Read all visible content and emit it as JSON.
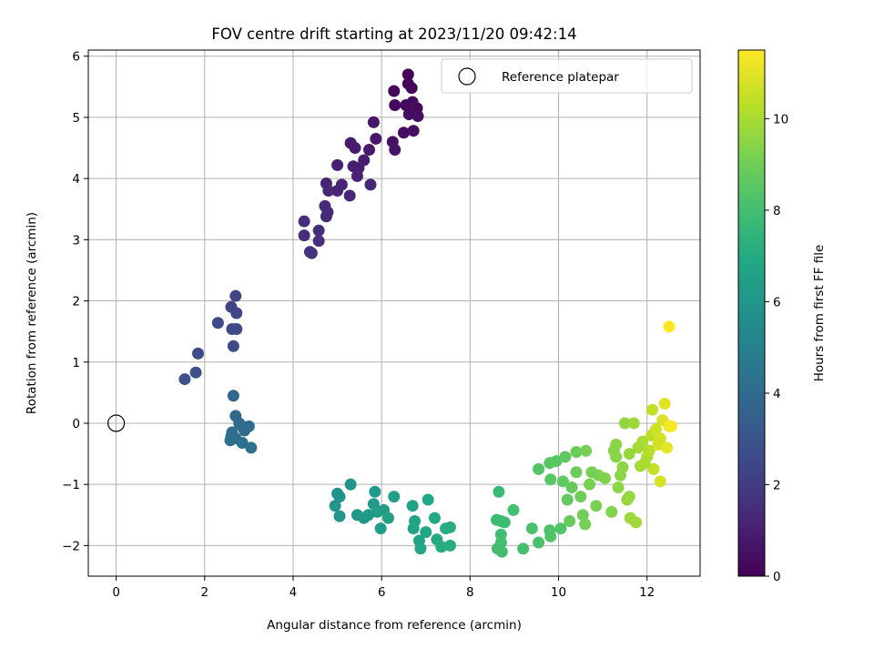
{
  "chart_data": {
    "type": "scatter",
    "title": "FOV centre drift starting at 2023/11/20 09:42:14",
    "xlabel": "Angular distance from reference (arcmin)",
    "ylabel": "Rotation from reference (arcmin)",
    "xlim": [
      -0.63,
      13.2
    ],
    "ylim": [
      -2.5,
      6.1
    ],
    "xticks": [
      "0",
      "2",
      "4",
      "6",
      "8",
      "10",
      "12"
    ],
    "xtick_values": [
      0,
      2,
      4,
      6,
      8,
      10,
      12
    ],
    "yticks": [
      "−2",
      "−1",
      "0",
      "1",
      "2",
      "3",
      "4",
      "5",
      "6"
    ],
    "ytick_values": [
      -2,
      -1,
      0,
      1,
      2,
      3,
      4,
      5,
      6
    ],
    "grid": true,
    "legend": {
      "placement": "top-right",
      "label": "Reference platepar"
    },
    "reference_point": {
      "x": 0,
      "y": 0
    },
    "colorbar": {
      "label": "Hours from first FF file",
      "range": [
        0,
        11.5
      ],
      "ticks": [
        "0",
        "2",
        "4",
        "6",
        "8",
        "10"
      ],
      "tick_values": [
        0,
        2,
        4,
        6,
        8,
        10
      ],
      "colormap": "viridis"
    },
    "points": [
      {
        "x": 6.6,
        "y": 5.7,
        "c": 0.1
      },
      {
        "x": 6.6,
        "y": 5.55,
        "c": 0.15
      },
      {
        "x": 6.68,
        "y": 5.48,
        "c": 0.2
      },
      {
        "x": 6.28,
        "y": 5.43,
        "c": 0.25
      },
      {
        "x": 6.3,
        "y": 5.2,
        "c": 0.3
      },
      {
        "x": 6.55,
        "y": 5.2,
        "c": 0.3
      },
      {
        "x": 6.7,
        "y": 5.25,
        "c": 0.35
      },
      {
        "x": 6.8,
        "y": 5.15,
        "c": 0.35
      },
      {
        "x": 6.82,
        "y": 5.02,
        "c": 0.4
      },
      {
        "x": 6.62,
        "y": 5.05,
        "c": 0.4
      },
      {
        "x": 6.72,
        "y": 4.78,
        "c": 0.45
      },
      {
        "x": 6.5,
        "y": 4.75,
        "c": 0.5
      },
      {
        "x": 6.25,
        "y": 4.6,
        "c": 0.55
      },
      {
        "x": 6.3,
        "y": 4.47,
        "c": 0.6
      },
      {
        "x": 5.82,
        "y": 4.92,
        "c": 0.7
      },
      {
        "x": 5.87,
        "y": 4.65,
        "c": 0.75
      },
      {
        "x": 5.72,
        "y": 4.47,
        "c": 0.8
      },
      {
        "x": 5.3,
        "y": 4.58,
        "c": 0.85
      },
      {
        "x": 5.4,
        "y": 4.5,
        "c": 0.9
      },
      {
        "x": 5.6,
        "y": 4.3,
        "c": 0.95
      },
      {
        "x": 5.36,
        "y": 4.2,
        "c": 1.0
      },
      {
        "x": 5.48,
        "y": 4.17,
        "c": 1.0
      },
      {
        "x": 5.0,
        "y": 4.22,
        "c": 1.05
      },
      {
        "x": 5.45,
        "y": 4.04,
        "c": 1.1
      },
      {
        "x": 4.75,
        "y": 3.92,
        "c": 1.15
      },
      {
        "x": 5.1,
        "y": 3.9,
        "c": 1.2
      },
      {
        "x": 5.0,
        "y": 3.8,
        "c": 1.2
      },
      {
        "x": 5.28,
        "y": 3.72,
        "c": 1.25
      },
      {
        "x": 4.8,
        "y": 3.8,
        "c": 1.3
      },
      {
        "x": 5.75,
        "y": 3.9,
        "c": 1.3
      },
      {
        "x": 4.72,
        "y": 3.55,
        "c": 1.35
      },
      {
        "x": 4.78,
        "y": 3.45,
        "c": 1.4
      },
      {
        "x": 4.75,
        "y": 3.38,
        "c": 1.4
      },
      {
        "x": 4.25,
        "y": 3.3,
        "c": 1.45
      },
      {
        "x": 4.58,
        "y": 3.15,
        "c": 1.5
      },
      {
        "x": 4.25,
        "y": 3.07,
        "c": 1.5
      },
      {
        "x": 4.58,
        "y": 2.98,
        "c": 1.55
      },
      {
        "x": 4.38,
        "y": 2.8,
        "c": 1.6
      },
      {
        "x": 4.42,
        "y": 2.78,
        "c": 1.6
      },
      {
        "x": 2.7,
        "y": 2.08,
        "c": 2.3
      },
      {
        "x": 2.6,
        "y": 1.9,
        "c": 2.35
      },
      {
        "x": 2.72,
        "y": 1.8,
        "c": 2.4
      },
      {
        "x": 2.3,
        "y": 1.64,
        "c": 2.45
      },
      {
        "x": 2.62,
        "y": 1.54,
        "c": 2.5
      },
      {
        "x": 2.72,
        "y": 1.54,
        "c": 2.5
      },
      {
        "x": 2.65,
        "y": 1.26,
        "c": 2.6
      },
      {
        "x": 1.85,
        "y": 1.14,
        "c": 2.7
      },
      {
        "x": 1.8,
        "y": 0.83,
        "c": 2.8
      },
      {
        "x": 1.55,
        "y": 0.72,
        "c": 2.9
      },
      {
        "x": 2.65,
        "y": 0.45,
        "c": 3.8
      },
      {
        "x": 2.7,
        "y": 0.12,
        "c": 3.9
      },
      {
        "x": 2.78,
        "y": 0.0,
        "c": 3.95
      },
      {
        "x": 2.85,
        "y": -0.05,
        "c": 4.0
      },
      {
        "x": 3.0,
        "y": -0.05,
        "c": 4.05
      },
      {
        "x": 2.62,
        "y": -0.15,
        "c": 4.1
      },
      {
        "x": 2.9,
        "y": -0.12,
        "c": 4.1
      },
      {
        "x": 2.6,
        "y": -0.22,
        "c": 4.15
      },
      {
        "x": 2.7,
        "y": -0.25,
        "c": 4.2
      },
      {
        "x": 2.85,
        "y": -0.32,
        "c": 4.25
      },
      {
        "x": 3.05,
        "y": -0.4,
        "c": 4.3
      },
      {
        "x": 2.58,
        "y": -0.28,
        "c": 4.2
      },
      {
        "x": 5.0,
        "y": -1.15,
        "c": 5.8
      },
      {
        "x": 5.05,
        "y": -1.2,
        "c": 5.85
      },
      {
        "x": 5.3,
        "y": -1.0,
        "c": 5.9
      },
      {
        "x": 4.95,
        "y": -1.35,
        "c": 5.95
      },
      {
        "x": 5.05,
        "y": -1.52,
        "c": 6.0
      },
      {
        "x": 5.45,
        "y": -1.5,
        "c": 6.05
      },
      {
        "x": 5.6,
        "y": -1.55,
        "c": 6.1
      },
      {
        "x": 5.7,
        "y": -1.5,
        "c": 6.15
      },
      {
        "x": 5.82,
        "y": -1.32,
        "c": 6.2
      },
      {
        "x": 5.85,
        "y": -1.12,
        "c": 6.25
      },
      {
        "x": 5.9,
        "y": -1.45,
        "c": 6.3
      },
      {
        "x": 5.98,
        "y": -1.72,
        "c": 6.35
      },
      {
        "x": 6.05,
        "y": -1.42,
        "c": 6.4
      },
      {
        "x": 6.15,
        "y": -1.55,
        "c": 6.45
      },
      {
        "x": 6.28,
        "y": -1.2,
        "c": 6.5
      },
      {
        "x": 6.7,
        "y": -1.35,
        "c": 6.6
      },
      {
        "x": 6.75,
        "y": -1.6,
        "c": 6.65
      },
      {
        "x": 6.72,
        "y": -1.72,
        "c": 6.7
      },
      {
        "x": 6.85,
        "y": -1.92,
        "c": 6.75
      },
      {
        "x": 6.88,
        "y": -2.05,
        "c": 6.8
      },
      {
        "x": 7.0,
        "y": -1.78,
        "c": 6.85
      },
      {
        "x": 7.05,
        "y": -1.25,
        "c": 6.9
      },
      {
        "x": 7.2,
        "y": -1.55,
        "c": 6.95
      },
      {
        "x": 7.25,
        "y": -1.9,
        "c": 7.0
      },
      {
        "x": 7.35,
        "y": -2.02,
        "c": 7.05
      },
      {
        "x": 7.45,
        "y": -1.72,
        "c": 7.1
      },
      {
        "x": 7.55,
        "y": -1.7,
        "c": 7.15
      },
      {
        "x": 7.55,
        "y": -2.0,
        "c": 7.2
      },
      {
        "x": 8.65,
        "y": -1.12,
        "c": 7.7
      },
      {
        "x": 8.6,
        "y": -1.58,
        "c": 7.75
      },
      {
        "x": 8.7,
        "y": -1.6,
        "c": 7.8
      },
      {
        "x": 8.78,
        "y": -1.62,
        "c": 7.85
      },
      {
        "x": 8.7,
        "y": -1.82,
        "c": 7.9
      },
      {
        "x": 8.62,
        "y": -2.05,
        "c": 7.95
      },
      {
        "x": 8.72,
        "y": -2.1,
        "c": 8.0
      },
      {
        "x": 8.7,
        "y": -1.95,
        "c": 8.0
      },
      {
        "x": 8.98,
        "y": -1.42,
        "c": 8.05
      },
      {
        "x": 9.2,
        "y": -2.05,
        "c": 8.1
      },
      {
        "x": 9.4,
        "y": -1.72,
        "c": 8.15
      },
      {
        "x": 9.55,
        "y": -1.95,
        "c": 8.2
      },
      {
        "x": 9.8,
        "y": -1.75,
        "c": 8.25
      },
      {
        "x": 9.82,
        "y": -1.85,
        "c": 8.3
      },
      {
        "x": 10.05,
        "y": -1.72,
        "c": 8.35
      },
      {
        "x": 9.55,
        "y": -0.75,
        "c": 8.4
      },
      {
        "x": 9.8,
        "y": -0.65,
        "c": 8.45
      },
      {
        "x": 9.82,
        "y": -0.92,
        "c": 8.5
      },
      {
        "x": 9.95,
        "y": -0.62,
        "c": 8.55
      },
      {
        "x": 10.1,
        "y": -0.95,
        "c": 8.6
      },
      {
        "x": 10.15,
        "y": -0.55,
        "c": 8.65
      },
      {
        "x": 10.2,
        "y": -1.25,
        "c": 8.7
      },
      {
        "x": 10.3,
        "y": -1.05,
        "c": 8.75
      },
      {
        "x": 10.25,
        "y": -1.6,
        "c": 8.8
      },
      {
        "x": 10.4,
        "y": -0.8,
        "c": 8.85
      },
      {
        "x": 10.4,
        "y": -0.47,
        "c": 8.9
      },
      {
        "x": 10.5,
        "y": -1.2,
        "c": 8.95
      },
      {
        "x": 10.55,
        "y": -1.5,
        "c": 9.0
      },
      {
        "x": 10.6,
        "y": -1.65,
        "c": 9.05
      },
      {
        "x": 10.62,
        "y": -0.45,
        "c": 9.1
      },
      {
        "x": 10.7,
        "y": -1.0,
        "c": 9.15
      },
      {
        "x": 10.85,
        "y": -1.35,
        "c": 9.2
      },
      {
        "x": 10.9,
        "y": -0.85,
        "c": 9.25
      },
      {
        "x": 11.05,
        "y": -0.9,
        "c": 9.3
      },
      {
        "x": 11.2,
        "y": -1.45,
        "c": 9.35
      },
      {
        "x": 11.25,
        "y": -0.45,
        "c": 9.4
      },
      {
        "x": 11.3,
        "y": -0.35,
        "c": 9.45
      },
      {
        "x": 11.35,
        "y": -1.05,
        "c": 9.5
      },
      {
        "x": 11.45,
        "y": -0.72,
        "c": 9.55
      },
      {
        "x": 11.5,
        "y": 0.0,
        "c": 9.6
      },
      {
        "x": 11.55,
        "y": -1.25,
        "c": 9.65
      },
      {
        "x": 11.6,
        "y": -1.2,
        "c": 9.7
      },
      {
        "x": 11.62,
        "y": -1.55,
        "c": 9.75
      },
      {
        "x": 11.7,
        "y": 0.0,
        "c": 9.8
      },
      {
        "x": 11.75,
        "y": -1.62,
        "c": 9.85
      },
      {
        "x": 11.8,
        "y": -0.4,
        "c": 9.9
      },
      {
        "x": 11.85,
        "y": -0.7,
        "c": 9.95
      },
      {
        "x": 11.9,
        "y": -0.3,
        "c": 10.0
      },
      {
        "x": 12.0,
        "y": -0.55,
        "c": 10.1
      },
      {
        "x": 12.05,
        "y": -0.45,
        "c": 10.2
      },
      {
        "x": 12.1,
        "y": -0.2,
        "c": 10.3
      },
      {
        "x": 12.12,
        "y": 0.22,
        "c": 10.4
      },
      {
        "x": 12.15,
        "y": -0.75,
        "c": 10.5
      },
      {
        "x": 12.2,
        "y": -0.1,
        "c": 10.6
      },
      {
        "x": 12.25,
        "y": -0.35,
        "c": 10.7
      },
      {
        "x": 12.3,
        "y": -0.95,
        "c": 10.8
      },
      {
        "x": 12.35,
        "y": 0.05,
        "c": 10.9
      },
      {
        "x": 12.4,
        "y": 0.32,
        "c": 11.0
      },
      {
        "x": 12.45,
        "y": -0.4,
        "c": 11.1
      },
      {
        "x": 12.5,
        "y": -0.05,
        "c": 11.3
      },
      {
        "x": 12.55,
        "y": -0.05,
        "c": 11.4
      },
      {
        "x": 12.5,
        "y": 1.58,
        "c": 11.5
      },
      {
        "x": 11.3,
        "y": -0.55,
        "c": 9.45
      },
      {
        "x": 10.75,
        "y": -0.8,
        "c": 9.1
      },
      {
        "x": 11.4,
        "y": -0.85,
        "c": 9.5
      },
      {
        "x": 11.6,
        "y": -0.5,
        "c": 9.7
      },
      {
        "x": 12.3,
        "y": -0.25,
        "c": 10.7
      },
      {
        "x": 11.95,
        "y": -0.65,
        "c": 10.0
      }
    ]
  }
}
